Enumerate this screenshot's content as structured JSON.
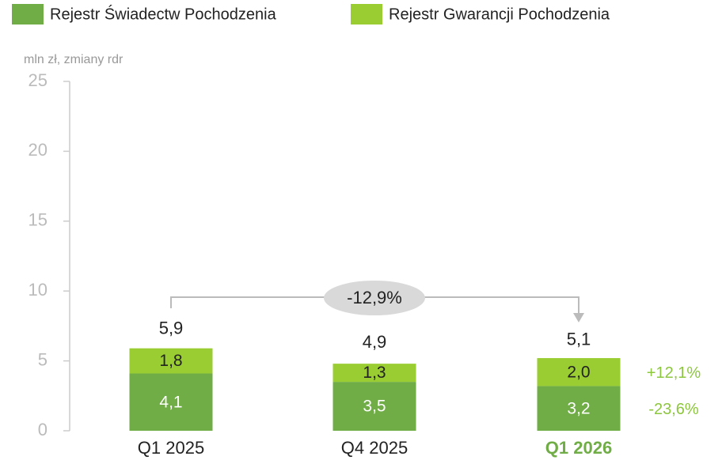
{
  "chart_data": {
    "type": "stacked-bar",
    "y_axis_label": "mln zł, zmiany rdr",
    "categories": [
      "Q1 2025",
      "Q4 2025",
      "Q1 2026"
    ],
    "highlight_index": 2,
    "series": [
      {
        "name": "Rejestr Świadectw Pochodzenia",
        "color": "#70ad47",
        "label_color": "#ffffff",
        "values": [
          4.1,
          3.5,
          3.2
        ],
        "value_labels": [
          "4,1",
          "3,5",
          "3,2"
        ]
      },
      {
        "name": "Rejestr Gwarancji Pochodzenia",
        "color": "#9acd32",
        "label_color": "#222222",
        "values": [
          1.8,
          1.3,
          2.0
        ],
        "value_labels": [
          "1,8",
          "1,3",
          "2,0"
        ]
      }
    ],
    "totals": {
      "values": [
        5.9,
        4.9,
        5.1
      ],
      "value_labels": [
        "5,9",
        "4,9",
        "5,1"
      ]
    },
    "change_label": "-12,9%",
    "series_changes": [
      "-23,6%",
      "+12,1%"
    ],
    "ylim": [
      0,
      25
    ],
    "yticks": [
      0,
      5,
      10,
      15,
      20,
      25
    ]
  }
}
